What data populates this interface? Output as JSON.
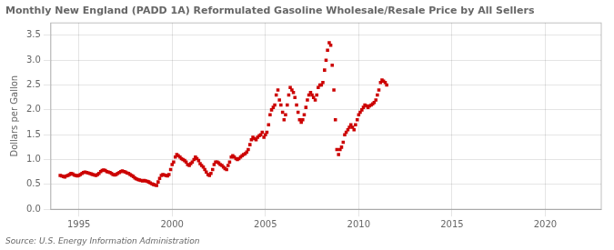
{
  "chart_data": {
    "type": "scatter",
    "title": "Monthly New England (PADD 1A) Reformulated Gasoline Wholesale/Resale Price by All Sellers",
    "y_label": "Dollars per Gallon",
    "annotations": [
      "Source: U.S. Energy Information Administration"
    ],
    "color": "#cc0000",
    "marker": "square",
    "grid": true,
    "xlim": [
      1993.5,
      2023.0
    ],
    "ylim": [
      0.0,
      3.75
    ],
    "xticks": [
      1995,
      2000,
      2005,
      2010,
      2015,
      2020
    ],
    "yticks": [
      {
        "value": 0.0,
        "label": "0.0"
      },
      0.5,
      {
        "value": 1.0,
        "label": "1.0"
      },
      1.5,
      {
        "value": 2.0,
        "label": "2.0"
      },
      2.5,
      {
        "value": 3.0,
        "label": "3.0"
      },
      3.5
    ],
    "x": [
      1994.0,
      1994.08,
      1994.17,
      1994.25,
      1994.33,
      1994.42,
      1994.5,
      1994.58,
      1994.67,
      1994.75,
      1994.83,
      1994.92,
      1995.0,
      1995.08,
      1995.17,
      1995.25,
      1995.33,
      1995.42,
      1995.5,
      1995.58,
      1995.67,
      1995.75,
      1995.83,
      1995.92,
      1996.0,
      1996.08,
      1996.17,
      1996.25,
      1996.33,
      1996.42,
      1996.5,
      1996.58,
      1996.67,
      1996.75,
      1996.83,
      1996.92,
      1997.0,
      1997.08,
      1997.17,
      1997.25,
      1997.33,
      1997.42,
      1997.5,
      1997.58,
      1997.67,
      1997.75,
      1997.83,
      1997.92,
      1998.0,
      1998.08,
      1998.17,
      1998.25,
      1998.33,
      1998.42,
      1998.5,
      1998.58,
      1998.67,
      1998.75,
      1998.83,
      1998.92,
      1999.0,
      1999.08,
      1999.17,
      1999.25,
      1999.33,
      1999.42,
      1999.5,
      1999.58,
      1999.67,
      1999.75,
      1999.83,
      1999.92,
      2000.0,
      2000.08,
      2000.17,
      2000.25,
      2000.33,
      2000.42,
      2000.5,
      2000.58,
      2000.67,
      2000.75,
      2000.83,
      2000.92,
      2001.0,
      2001.08,
      2001.17,
      2001.25,
      2001.33,
      2001.42,
      2001.5,
      2001.58,
      2001.67,
      2001.75,
      2001.83,
      2001.92,
      2002.0,
      2002.08,
      2002.17,
      2002.25,
      2002.33,
      2002.42,
      2002.5,
      2002.58,
      2002.67,
      2002.75,
      2002.83,
      2002.92,
      2003.0,
      2003.08,
      2003.17,
      2003.25,
      2003.33,
      2003.42,
      2003.5,
      2003.58,
      2003.67,
      2003.75,
      2003.83,
      2003.92,
      2004.0,
      2004.08,
      2004.17,
      2004.25,
      2004.33,
      2004.42,
      2004.5,
      2004.58,
      2004.67,
      2004.75,
      2004.83,
      2004.92,
      2005.0,
      2005.08,
      2005.17,
      2005.25,
      2005.33,
      2005.42,
      2005.5,
      2005.58,
      2005.67,
      2005.75,
      2005.83,
      2005.92,
      2006.0,
      2006.08,
      2006.17,
      2006.25,
      2006.33,
      2006.42,
      2006.5,
      2006.58,
      2006.67,
      2006.75,
      2006.83,
      2006.92,
      2007.0,
      2007.08,
      2007.17,
      2007.25,
      2007.33,
      2007.42,
      2007.5,
      2007.58,
      2007.67,
      2007.75,
      2007.83,
      2007.92,
      2008.0,
      2008.08,
      2008.17,
      2008.25,
      2008.33,
      2008.42,
      2008.5,
      2008.58,
      2008.67,
      2008.75,
      2008.83,
      2008.92,
      2009.0,
      2009.08,
      2009.17,
      2009.25,
      2009.33,
      2009.42,
      2009.5,
      2009.58,
      2009.67,
      2009.75,
      2009.83,
      2009.92,
      2010.0,
      2010.08,
      2010.17,
      2010.25,
      2010.33,
      2010.42,
      2010.5,
      2010.58,
      2010.67,
      2010.75,
      2010.83,
      2010.92,
      2011.0,
      2011.08,
      2011.17,
      2011.25,
      2011.33,
      2011.42,
      2011.5
    ],
    "values": [
      0.68,
      0.67,
      0.66,
      0.65,
      0.67,
      0.68,
      0.7,
      0.72,
      0.71,
      0.69,
      0.68,
      0.67,
      0.68,
      0.7,
      0.72,
      0.74,
      0.75,
      0.74,
      0.73,
      0.72,
      0.71,
      0.7,
      0.69,
      0.68,
      0.7,
      0.72,
      0.76,
      0.78,
      0.79,
      0.78,
      0.76,
      0.75,
      0.74,
      0.72,
      0.7,
      0.69,
      0.7,
      0.72,
      0.74,
      0.76,
      0.77,
      0.76,
      0.75,
      0.73,
      0.72,
      0.7,
      0.68,
      0.66,
      0.63,
      0.61,
      0.6,
      0.59,
      0.58,
      0.57,
      0.58,
      0.57,
      0.56,
      0.55,
      0.53,
      0.51,
      0.5,
      0.49,
      0.48,
      0.55,
      0.62,
      0.68,
      0.7,
      0.69,
      0.68,
      0.67,
      0.7,
      0.8,
      0.9,
      0.95,
      1.05,
      1.1,
      1.08,
      1.05,
      1.02,
      1.0,
      0.98,
      0.95,
      0.9,
      0.88,
      0.92,
      0.95,
      1.0,
      1.05,
      1.02,
      0.98,
      0.92,
      0.88,
      0.85,
      0.8,
      0.75,
      0.7,
      0.68,
      0.72,
      0.8,
      0.9,
      0.95,
      0.95,
      0.93,
      0.9,
      0.88,
      0.85,
      0.82,
      0.8,
      0.88,
      0.95,
      1.05,
      1.08,
      1.05,
      1.02,
      1.0,
      1.02,
      1.05,
      1.08,
      1.1,
      1.12,
      1.15,
      1.2,
      1.3,
      1.4,
      1.45,
      1.42,
      1.4,
      1.45,
      1.48,
      1.5,
      1.55,
      1.45,
      1.5,
      1.55,
      1.7,
      1.9,
      2.0,
      2.05,
      2.1,
      2.3,
      2.4,
      2.2,
      2.1,
      1.95,
      1.8,
      1.9,
      2.1,
      2.3,
      2.45,
      2.4,
      2.35,
      2.25,
      2.1,
      1.95,
      1.8,
      1.75,
      1.8,
      1.9,
      2.05,
      2.2,
      2.3,
      2.35,
      2.3,
      2.25,
      2.2,
      2.3,
      2.45,
      2.5,
      2.5,
      2.55,
      2.8,
      3.0,
      3.2,
      3.35,
      3.3,
      2.9,
      2.4,
      1.8,
      1.2,
      1.1,
      1.2,
      1.25,
      1.35,
      1.5,
      1.55,
      1.6,
      1.65,
      1.7,
      1.65,
      1.6,
      1.7,
      1.8,
      1.9,
      1.95,
      2.0,
      2.05,
      2.1,
      2.08,
      2.05,
      2.08,
      2.1,
      2.12,
      2.15,
      2.2,
      2.3,
      2.4,
      2.55,
      2.6,
      2.58,
      2.55,
      2.5
    ]
  }
}
